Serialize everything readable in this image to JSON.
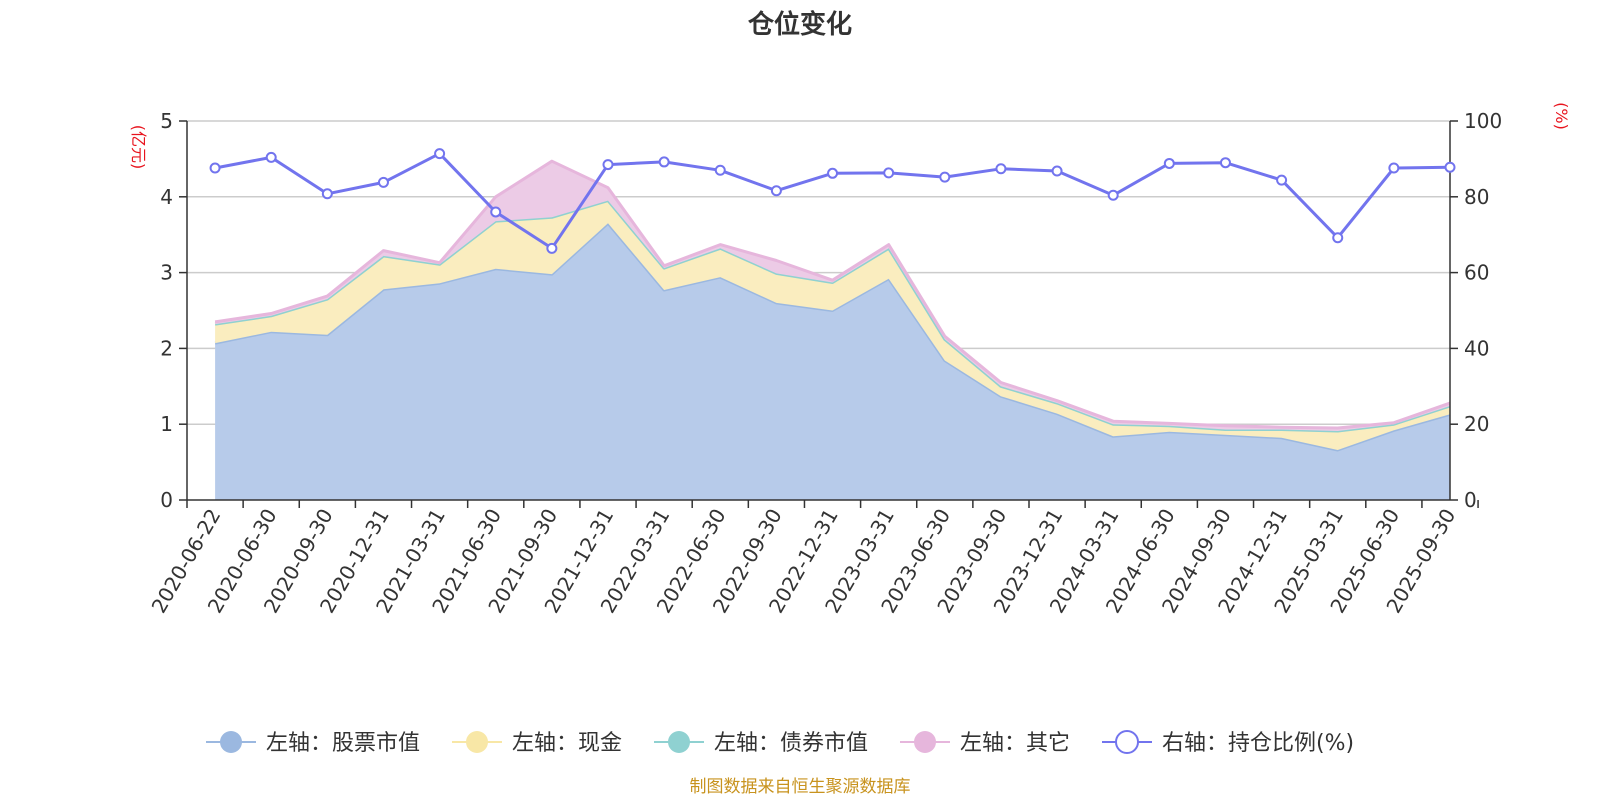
{
  "chart_data": {
    "type": "area",
    "title": "仓位变化",
    "left_axis_unit": "(亿元)",
    "right_axis_unit": "(%)",
    "left_ylim": [
      0,
      5
    ],
    "left_ticks": [
      0,
      1,
      2,
      3,
      4,
      5
    ],
    "right_ylim": [
      0,
      100
    ],
    "right_ticks": [
      0,
      20,
      40,
      60,
      80,
      100
    ],
    "categories": [
      "2020-06-22",
      "2020-06-30",
      "2020-09-30",
      "2020-12-31",
      "2021-03-31",
      "2021-06-30",
      "2021-09-30",
      "2021-12-31",
      "2022-03-31",
      "2022-06-30",
      "2022-09-30",
      "2022-12-31",
      "2023-03-31",
      "2023-06-30",
      "2023-09-30",
      "2023-12-31",
      "2024-03-31",
      "2024-06-30",
      "2024-09-30",
      "2024-12-31",
      "2025-03-31",
      "2025-06-30",
      "2025-09-30"
    ],
    "series": [
      {
        "name": "左轴：股票市值",
        "axis": "left",
        "kind": "stacked-area",
        "color": "#9bb8e0",
        "fill": "#b7cbea",
        "values": [
          2.07,
          2.22,
          2.18,
          2.78,
          2.86,
          3.05,
          2.98,
          3.65,
          2.77,
          2.94,
          2.6,
          2.5,
          2.92,
          1.84,
          1.37,
          1.14,
          0.84,
          0.9,
          0.86,
          0.82,
          0.66,
          0.92,
          1.13
        ]
      },
      {
        "name": "左轴：现金",
        "axis": "left",
        "kind": "stacked-area",
        "color": "#f8e7a6",
        "fill": "#faedbf",
        "values": [
          0.25,
          0.21,
          0.47,
          0.44,
          0.25,
          0.63,
          0.75,
          0.3,
          0.29,
          0.38,
          0.39,
          0.37,
          0.4,
          0.28,
          0.13,
          0.14,
          0.16,
          0.08,
          0.07,
          0.11,
          0.25,
          0.08,
          0.11
        ]
      },
      {
        "name": "左轴：债券市值",
        "axis": "left",
        "kind": "stacked-area",
        "color": "#8fd1d1",
        "fill": "#b5e3e3",
        "values": [
          0,
          0,
          0,
          0,
          0,
          0,
          0,
          0,
          0,
          0,
          0,
          0,
          0,
          0,
          0,
          0,
          0,
          0,
          0,
          0,
          0,
          0,
          0
        ]
      },
      {
        "name": "左轴：其它",
        "axis": "left",
        "kind": "stacked-area",
        "color": "#e6b6dc",
        "fill": "#eccbe6",
        "values": [
          0.03,
          0.03,
          0.04,
          0.07,
          0.02,
          0.32,
          0.74,
          0.17,
          0.03,
          0.05,
          0.17,
          0.03,
          0.05,
          0.04,
          0.05,
          0.03,
          0.04,
          0.03,
          0.05,
          0.03,
          0.04,
          0.02,
          0.04
        ]
      },
      {
        "name": "右轴：持仓比例(%)",
        "axis": "right",
        "kind": "line",
        "color": "#7274ee",
        "values": [
          87.6,
          90.4,
          80.8,
          83.8,
          91.4,
          76.0,
          66.4,
          88.5,
          89.2,
          87.0,
          81.6,
          86.2,
          86.3,
          85.2,
          87.4,
          86.8,
          80.4,
          88.8,
          89.0,
          84.4,
          69.2,
          87.6,
          87.8
        ]
      }
    ],
    "source": "制图数据来自恒生聚源数据库"
  }
}
